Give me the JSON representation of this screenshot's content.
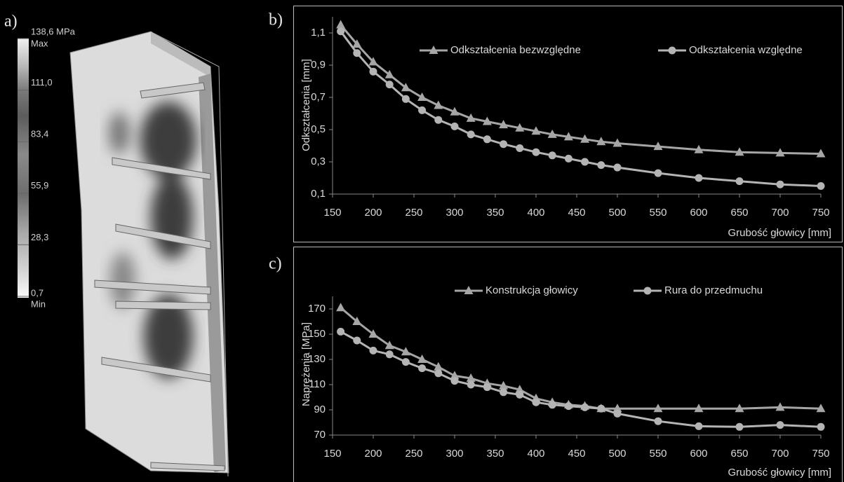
{
  "panel_labels": [
    "a)",
    "b)",
    "c)"
  ],
  "colorbar": {
    "lim": [
      0.7,
      138.6
    ],
    "max_label": "Max",
    "min_label": "Min",
    "ticks": [
      {
        "value": 138.6,
        "label": "138,6 MPa"
      },
      {
        "value": 111.0,
        "label": "111,0"
      },
      {
        "value": 83.4,
        "label": "83,4"
      },
      {
        "value": 55.9,
        "label": "55,9"
      },
      {
        "value": 28.3,
        "label": "28,3"
      },
      {
        "value": 0.7,
        "label": "0,7"
      }
    ]
  },
  "chart_data": [
    {
      "type": "line",
      "x_label": "Grubość głowicy [mm]",
      "y_label": "Odkształcenia  [mm]",
      "legend": "top",
      "x": [
        160,
        180,
        200,
        220,
        240,
        260,
        280,
        300,
        320,
        340,
        360,
        380,
        400,
        420,
        440,
        460,
        480,
        500,
        550,
        600,
        650,
        700,
        750
      ],
      "xlim": [
        150,
        750
      ],
      "xticks": [
        150,
        200,
        250,
        300,
        350,
        400,
        450,
        500,
        550,
        600,
        650,
        700,
        750
      ],
      "ylim": [
        0.1,
        1.2
      ],
      "yticks": [
        {
          "value": 0.1,
          "label": "0,1"
        },
        {
          "value": 0.3,
          "label": "0,3"
        },
        {
          "value": 0.5,
          "label": "0,5"
        },
        {
          "value": 0.7,
          "label": "0,7"
        },
        {
          "value": 0.9,
          "label": "0,9"
        },
        {
          "value": 1.1,
          "label": "1,1"
        }
      ],
      "series": [
        {
          "name": "Odkształcenia bezwzględne",
          "color": "#a6a6a6",
          "marker": "triangle",
          "values": [
            1.15,
            1.03,
            0.92,
            0.84,
            0.76,
            0.7,
            0.65,
            0.61,
            0.57,
            0.55,
            0.53,
            0.51,
            0.49,
            0.47,
            0.455,
            0.44,
            0.425,
            0.415,
            0.395,
            0.375,
            0.36,
            0.355,
            0.35
          ]
        },
        {
          "name": "Odkształcenia względne",
          "color": "#b4b4b4",
          "marker": "circle",
          "values": [
            1.11,
            0.975,
            0.86,
            0.78,
            0.69,
            0.62,
            0.56,
            0.52,
            0.47,
            0.44,
            0.41,
            0.385,
            0.36,
            0.34,
            0.32,
            0.3,
            0.28,
            0.265,
            0.23,
            0.2,
            0.18,
            0.16,
            0.15
          ]
        }
      ]
    },
    {
      "type": "line",
      "x_label": "Grubość głowicy [mm]",
      "y_label": "Naprężenia  [MPa]",
      "legend": "top",
      "x": [
        160,
        180,
        200,
        220,
        240,
        260,
        280,
        300,
        320,
        340,
        360,
        380,
        400,
        420,
        440,
        460,
        480,
        500,
        550,
        600,
        650,
        700,
        750
      ],
      "xlim": [
        150,
        750
      ],
      "xticks": [
        150,
        200,
        250,
        300,
        350,
        400,
        450,
        500,
        550,
        600,
        650,
        700,
        750
      ],
      "ylim": [
        70,
        180
      ],
      "yticks": [
        70,
        90,
        110,
        130,
        150,
        170
      ],
      "series": [
        {
          "name": "Konstrukcja głowicy",
          "color": "#a6a6a6",
          "marker": "triangle",
          "values": [
            171,
            160,
            150,
            141,
            136,
            130,
            124,
            117,
            115,
            111,
            109,
            106,
            99,
            96,
            94,
            93,
            91,
            91,
            91,
            91,
            91,
            92,
            91
          ]
        },
        {
          "name": "Rura do przedmuchu",
          "color": "#b4b4b4",
          "marker": "circle",
          "values": [
            152,
            145,
            137,
            134,
            128,
            123,
            119,
            113,
            110,
            108,
            104,
            102,
            96,
            94,
            93,
            92,
            91,
            87,
            81,
            77,
            76.5,
            78,
            76.5
          ]
        }
      ]
    }
  ]
}
